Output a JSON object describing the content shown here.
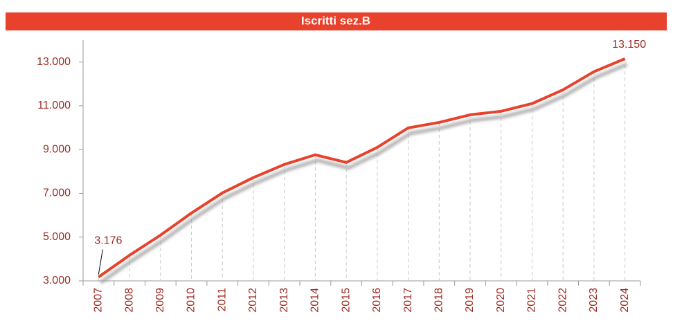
{
  "chart_data": {
    "type": "line",
    "title": "Iscritti sez.B",
    "categories": [
      "2007",
      "2008",
      "2009",
      "2010",
      "2011",
      "2012",
      "2013",
      "2014",
      "2015",
      "2016",
      "2017",
      "2018",
      "2019",
      "2020",
      "2021",
      "2022",
      "2023",
      "2024"
    ],
    "series": [
      {
        "name": "Iscritti sez.B",
        "color": "#e8412c",
        "values": [
          3176,
          4170,
          5090,
          6100,
          7020,
          7720,
          8320,
          8760,
          8410,
          9100,
          9990,
          10240,
          10590,
          10750,
          11100,
          11730,
          12560,
          13150
        ],
        "value_labels": [
          "3.176",
          null,
          null,
          null,
          null,
          null,
          null,
          null,
          null,
          null,
          null,
          null,
          null,
          null,
          null,
          null,
          null,
          "13.150"
        ]
      }
    ],
    "ylim": [
      3000,
      14000
    ],
    "yticks": [
      {
        "value": 3000,
        "label": "3.000"
      },
      {
        "value": 5000,
        "label": "5.000"
      },
      {
        "value": 7000,
        "label": "7.000"
      },
      {
        "value": 9000,
        "label": "9.000"
      },
      {
        "value": 11000,
        "label": "11.000"
      },
      {
        "value": 13000,
        "label": "13.000"
      }
    ],
    "grid": true
  }
}
